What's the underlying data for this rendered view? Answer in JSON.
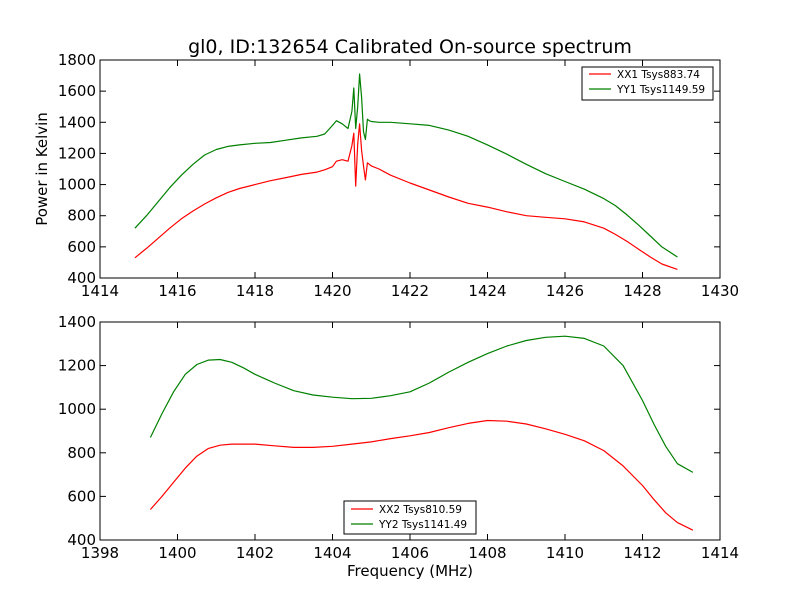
{
  "chart_data": [
    {
      "type": "line",
      "title": "gl0, ID:132654 Calibrated On-source spectrum",
      "xlabel": "",
      "ylabel": "Power in Kelvin",
      "xlim": [
        1414,
        1430
      ],
      "ylim": [
        400,
        1800
      ],
      "xticks": [
        "1414",
        "1416",
        "1418",
        "1420",
        "1422",
        "1424",
        "1426",
        "1428",
        "1430"
      ],
      "yticks": [
        "400",
        "600",
        "800",
        "1000",
        "1200",
        "1400",
        "1600",
        "1800"
      ],
      "legend_position": "top-right",
      "series": [
        {
          "name": "XX1 Tsys883.74",
          "color": "#ff0000",
          "x": [
            1414.9,
            1415.2,
            1415.5,
            1415.8,
            1416.1,
            1416.4,
            1416.7,
            1417.0,
            1417.3,
            1417.6,
            1418.0,
            1418.4,
            1418.8,
            1419.2,
            1419.6,
            1419.8,
            1420.0,
            1420.1,
            1420.25,
            1420.4,
            1420.5,
            1420.55,
            1420.6,
            1420.65,
            1420.7,
            1420.75,
            1420.8,
            1420.85,
            1420.9,
            1420.95,
            1421.0,
            1421.2,
            1421.5,
            1422.0,
            1422.5,
            1423.0,
            1423.5,
            1424.0,
            1424.5,
            1425.0,
            1425.5,
            1426.0,
            1426.5,
            1427.0,
            1427.3,
            1427.6,
            1427.9,
            1428.2,
            1428.5,
            1428.9
          ],
          "y": [
            530,
            590,
            655,
            720,
            780,
            830,
            875,
            915,
            950,
            975,
            1000,
            1025,
            1045,
            1065,
            1080,
            1095,
            1115,
            1150,
            1160,
            1150,
            1250,
            1330,
            990,
            1260,
            1390,
            1220,
            1120,
            1030,
            1140,
            1130,
            1120,
            1100,
            1060,
            1010,
            965,
            920,
            880,
            855,
            825,
            800,
            790,
            780,
            760,
            720,
            680,
            635,
            585,
            535,
            490,
            455
          ]
        },
        {
          "name": "YY1 Tsys1149.59",
          "color": "#008000",
          "x": [
            1414.9,
            1415.2,
            1415.5,
            1415.8,
            1416.1,
            1416.4,
            1416.7,
            1417.0,
            1417.3,
            1417.6,
            1418.0,
            1418.4,
            1418.8,
            1419.2,
            1419.6,
            1419.8,
            1420.0,
            1420.1,
            1420.25,
            1420.4,
            1420.5,
            1420.55,
            1420.6,
            1420.65,
            1420.7,
            1420.75,
            1420.8,
            1420.85,
            1420.9,
            1420.95,
            1421.0,
            1421.2,
            1421.5,
            1422.0,
            1422.5,
            1423.0,
            1423.5,
            1424.0,
            1424.5,
            1425.0,
            1425.5,
            1426.0,
            1426.5,
            1427.0,
            1427.3,
            1427.6,
            1427.9,
            1428.2,
            1428.5,
            1428.9
          ],
          "y": [
            720,
            800,
            890,
            980,
            1060,
            1130,
            1190,
            1225,
            1245,
            1255,
            1265,
            1270,
            1285,
            1300,
            1310,
            1325,
            1380,
            1410,
            1390,
            1360,
            1470,
            1620,
            1360,
            1500,
            1710,
            1560,
            1340,
            1290,
            1420,
            1410,
            1405,
            1400,
            1400,
            1390,
            1380,
            1350,
            1310,
            1255,
            1195,
            1130,
            1070,
            1020,
            970,
            910,
            865,
            805,
            740,
            670,
            600,
            535
          ]
        }
      ]
    },
    {
      "type": "line",
      "title": "",
      "xlabel": "Frequency (MHz)",
      "ylabel": "",
      "xlim": [
        1398,
        1414
      ],
      "ylim": [
        400,
        1400
      ],
      "xticks": [
        "1398",
        "1400",
        "1402",
        "1404",
        "1406",
        "1408",
        "1410",
        "1412",
        "1414"
      ],
      "yticks": [
        "400",
        "600",
        "800",
        "1000",
        "1200",
        "1400"
      ],
      "legend_position": "bottom-center",
      "series": [
        {
          "name": "XX2 Tsys810.59",
          "color": "#ff0000",
          "x": [
            1399.3,
            1399.6,
            1399.9,
            1400.2,
            1400.5,
            1400.8,
            1401.1,
            1401.4,
            1401.7,
            1402.0,
            1402.5,
            1403.0,
            1403.5,
            1404.0,
            1404.5,
            1405.0,
            1405.5,
            1406.0,
            1406.5,
            1407.0,
            1407.5,
            1408.0,
            1408.5,
            1409.0,
            1409.5,
            1410.0,
            1410.5,
            1411.0,
            1411.5,
            1412.0,
            1412.3,
            1412.6,
            1412.9,
            1413.3
          ],
          "y": [
            540,
            600,
            665,
            730,
            785,
            820,
            835,
            840,
            840,
            840,
            832,
            825,
            825,
            830,
            840,
            850,
            865,
            878,
            893,
            915,
            935,
            948,
            945,
            932,
            910,
            885,
            855,
            810,
            740,
            650,
            585,
            525,
            480,
            445
          ]
        },
        {
          "name": "YY2 Tsys1141.49",
          "color": "#008000",
          "x": [
            1399.3,
            1399.6,
            1399.9,
            1400.2,
            1400.5,
            1400.8,
            1401.1,
            1401.4,
            1401.7,
            1402.0,
            1402.5,
            1403.0,
            1403.5,
            1404.0,
            1404.5,
            1405.0,
            1405.5,
            1406.0,
            1406.5,
            1407.0,
            1407.5,
            1408.0,
            1408.5,
            1409.0,
            1409.5,
            1410.0,
            1410.5,
            1411.0,
            1411.5,
            1412.0,
            1412.3,
            1412.6,
            1412.9,
            1413.3
          ],
          "y": [
            870,
            980,
            1080,
            1160,
            1205,
            1225,
            1228,
            1215,
            1190,
            1160,
            1120,
            1085,
            1065,
            1055,
            1048,
            1050,
            1062,
            1080,
            1120,
            1170,
            1215,
            1255,
            1290,
            1315,
            1330,
            1335,
            1325,
            1290,
            1200,
            1040,
            930,
            830,
            750,
            710
          ]
        }
      ]
    }
  ]
}
